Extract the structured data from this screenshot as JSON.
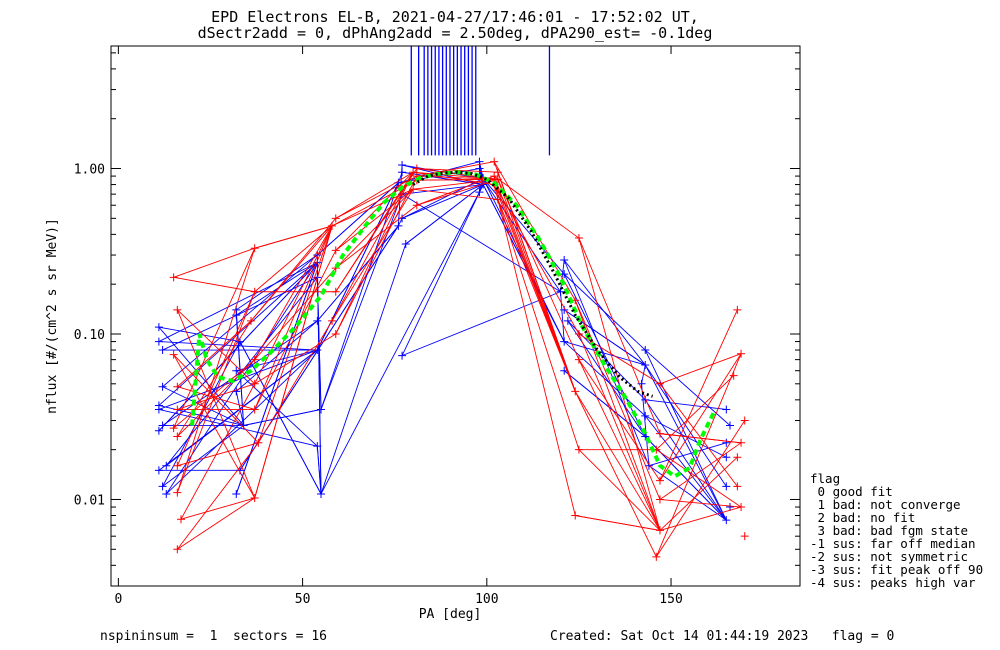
{
  "chart_data": {
    "type": "scatter",
    "title": "EPD Electrons EL-B, 2021-04-27/17:46:01 - 17:52:02 UT,",
    "subtitle": "dSectr2add = 0, dPhAng2add = 2.50deg, dPA290_est=  -0.1deg",
    "xlabel": "PA [deg]",
    "ylabel": "nflux [#/(cm^2 s sr MeV)]",
    "xlim": [
      -2,
      185
    ],
    "ylim": [
      0.003,
      5.5
    ],
    "yscale": "log",
    "xticks": [
      {
        "value": 0,
        "label": "0"
      },
      {
        "value": 50,
        "label": "50"
      },
      {
        "value": 100,
        "label": "100"
      },
      {
        "value": 150,
        "label": "150"
      }
    ],
    "yticks": [
      {
        "value": 0.01,
        "label": "0.01"
      },
      {
        "value": 0.1,
        "label": "0.10"
      },
      {
        "value": 1.0,
        "label": "1.00"
      }
    ],
    "colors": {
      "blue": "#0000ff",
      "red": "#ff0000",
      "green": "#00ff00",
      "black": "#000000"
    },
    "series": [
      {
        "color": "#0000ff",
        "x": [
          11,
          11,
          12,
          12,
          11,
          11,
          12,
          11,
          11,
          12,
          13,
          13,
          32,
          32,
          33,
          32,
          32,
          34,
          33,
          32,
          54,
          54,
          54,
          54,
          54,
          55,
          54,
          55,
          77,
          77,
          76,
          77,
          77,
          76,
          78,
          77,
          98,
          98,
          98,
          99,
          99,
          98,
          121,
          121,
          120,
          121,
          122,
          121,
          121,
          143,
          143,
          142,
          143,
          143,
          143,
          144,
          165,
          166,
          165,
          165,
          165,
          166,
          165
        ],
        "y": [
          0.11,
          0.09,
          0.08,
          0.048,
          0.037,
          0.035,
          0.028,
          0.026,
          0.015,
          0.012,
          0.0108,
          0.016,
          0.14,
          0.13,
          0.09,
          0.06,
          0.045,
          0.028,
          0.015,
          0.0108,
          0.3,
          0.27,
          0.22,
          0.12,
          0.08,
          0.035,
          0.021,
          0.0108,
          1.05,
          0.95,
          0.82,
          0.7,
          0.5,
          0.45,
          0.35,
          0.074,
          1.1,
          1.0,
          0.92,
          0.87,
          0.8,
          0.72,
          0.28,
          0.23,
          0.18,
          0.14,
          0.12,
          0.09,
          0.06,
          0.08,
          0.065,
          0.05,
          0.04,
          0.032,
          0.024,
          0.016,
          0.035,
          0.028,
          0.022,
          0.018,
          0.012,
          0.009,
          0.0075
        ]
      },
      {
        "color": "#ff0000",
        "x": [
          15,
          16,
          15,
          16,
          16,
          15,
          16,
          16,
          16,
          17,
          16,
          37,
          37,
          36,
          37,
          37,
          37,
          38,
          37,
          59,
          58,
          59,
          59,
          59,
          58,
          59,
          81,
          80,
          81,
          81,
          80,
          81,
          102,
          103,
          102,
          103,
          102,
          103,
          103,
          125,
          124,
          125,
          125,
          124,
          125,
          124,
          147,
          147,
          146,
          147,
          147,
          147,
          146,
          168,
          169,
          167,
          170,
          169,
          168,
          168,
          169,
          170
        ],
        "y": [
          0.22,
          0.14,
          0.075,
          0.048,
          0.035,
          0.027,
          0.024,
          0.016,
          0.011,
          0.0076,
          0.005,
          0.33,
          0.18,
          0.12,
          0.07,
          0.05,
          0.035,
          0.022,
          0.0102,
          0.5,
          0.45,
          0.32,
          0.25,
          0.18,
          0.12,
          0.1,
          1.0,
          0.95,
          0.9,
          0.85,
          0.75,
          0.6,
          1.1,
          0.95,
          0.9,
          0.86,
          0.8,
          0.74,
          0.65,
          0.38,
          0.16,
          0.1,
          0.07,
          0.045,
          0.02,
          0.008,
          0.05,
          0.025,
          0.02,
          0.013,
          0.01,
          0.0065,
          0.0045,
          0.14,
          0.076,
          0.056,
          0.03,
          0.022,
          0.018,
          0.012,
          0.009,
          0.006
        ]
      },
      {
        "color": "#00ff00",
        "x": [
          20,
          22,
          24,
          27,
          31,
          36,
          42,
          48,
          55,
          61,
          67,
          72,
          77,
          82,
          87,
          92,
          97,
          102,
          108,
          114,
          120,
          126,
          132,
          138,
          143,
          147,
          151,
          155,
          158,
          162
        ],
        "y": [
          0.028,
          0.1,
          0.07,
          0.055,
          0.052,
          0.06,
          0.08,
          0.11,
          0.17,
          0.3,
          0.45,
          0.62,
          0.77,
          0.88,
          0.93,
          0.95,
          0.92,
          0.82,
          0.6,
          0.38,
          0.22,
          0.11,
          0.065,
          0.04,
          0.025,
          0.016,
          0.0138,
          0.0155,
          0.023,
          0.035
        ]
      },
      {
        "color": "#000000",
        "x": [
          80,
          84,
          88,
          92,
          96,
          100,
          106,
          112,
          118,
          124,
          130,
          136,
          141,
          145
        ],
        "y": [
          0.8,
          0.9,
          0.94,
          0.95,
          0.93,
          0.86,
          0.66,
          0.42,
          0.24,
          0.13,
          0.08,
          0.055,
          0.045,
          0.042
        ]
      }
    ],
    "spikes_x": [
      79.5,
      81.5,
      83,
      84,
      85,
      86,
      87,
      88,
      89,
      90,
      91,
      92,
      93,
      94,
      95,
      96,
      97,
      117
    ]
  },
  "legend": {
    "items": [
      "flag",
      " 0 good fit",
      " 1 bad: not converge",
      " 2 bad: no fit",
      " 3 bad: bad fgm state",
      "-1 sus: far off median",
      "-2 sus: not symmetric",
      "-3 sus: fit peak off 90",
      "-4 sus: peaks high var"
    ]
  },
  "footer": {
    "left": "nspininsum =  1  sectors = 16",
    "right": "Created: Sat Oct 14 01:44:19 2023   flag = 0"
  }
}
